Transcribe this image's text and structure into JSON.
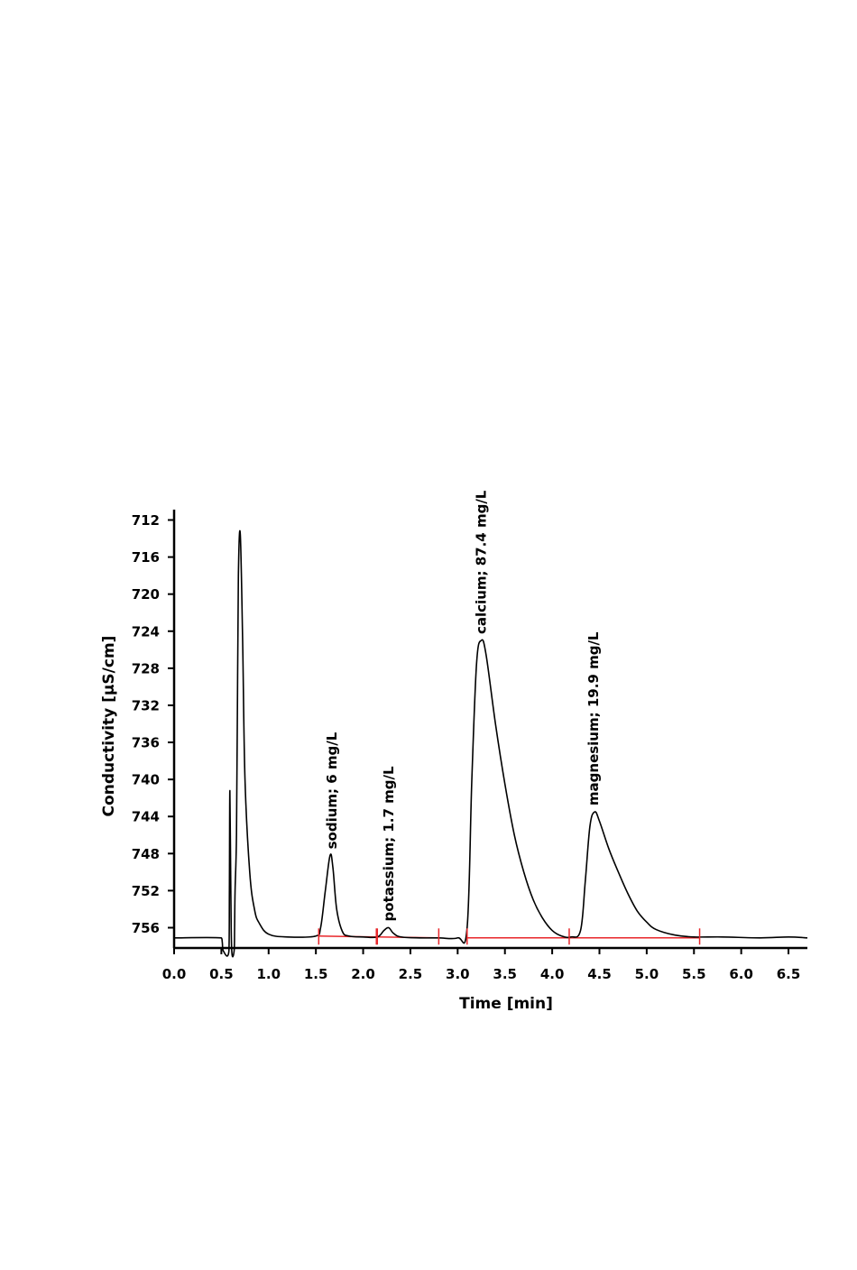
{
  "chart_data": {
    "type": "line",
    "xlabel": "Time [min]",
    "ylabel": "Conductivity [µS/cm]",
    "xlim": [
      0.0,
      6.7
    ],
    "ylim": [
      756.0,
      712.0
    ],
    "y_axis_inverted": true,
    "x_ticks": [
      "0.0",
      "0.5",
      "1.0",
      "1.5",
      "2.0",
      "2.5",
      "3.0",
      "3.5",
      "4.0",
      "4.5",
      "5.0",
      "5.5",
      "6.0",
      "6.5"
    ],
    "y_ticks": [
      "712",
      "716",
      "720",
      "724",
      "728",
      "732",
      "736",
      "740",
      "744",
      "748",
      "752",
      "756"
    ],
    "grid": false,
    "colors": {
      "trace": "#000000",
      "baseline": "#e8262a"
    },
    "series": [
      {
        "x": [
          0.0,
          0.5,
          0.51,
          0.52,
          0.58,
          0.585,
          0.59,
          0.6,
          0.61,
          0.635,
          0.64,
          0.645,
          0.66,
          0.67,
          0.68,
          0.7,
          0.725,
          0.75,
          0.8,
          0.85,
          0.9,
          1.0,
          1.2,
          1.5,
          1.55,
          1.6,
          1.65,
          1.68,
          1.72,
          1.78,
          1.85,
          2.0,
          2.15,
          2.22,
          2.27,
          2.32,
          2.4,
          2.6,
          2.8,
          3.0,
          3.1,
          3.15,
          3.2,
          3.25,
          3.3,
          3.4,
          3.5,
          3.6,
          3.7,
          3.8,
          3.9,
          4.0,
          4.1,
          4.2,
          4.3,
          4.35,
          4.4,
          4.45,
          4.5,
          4.6,
          4.7,
          4.8,
          4.9,
          5.0,
          5.1,
          5.3,
          5.5,
          5.8,
          6.2,
          6.5,
          6.7
        ],
        "y": [
          757.1,
          757.1,
          757.6,
          758.5,
          758.5,
          752.0,
          741.2,
          752.0,
          758.5,
          758.5,
          756.0,
          752.0,
          746.0,
          732.0,
          718.0,
          713.5,
          725.0,
          740.0,
          750.0,
          754.0,
          755.5,
          756.7,
          757.0,
          756.9,
          756.0,
          752.0,
          748.2,
          749.5,
          754.0,
          756.4,
          756.9,
          757.0,
          757.0,
          756.3,
          756.0,
          756.6,
          757.0,
          757.1,
          757.1,
          757.1,
          756.0,
          740.0,
          727.5,
          725.0,
          726.5,
          734.0,
          740.5,
          746.0,
          750.0,
          753.0,
          755.0,
          756.3,
          756.9,
          757.0,
          756.3,
          751.0,
          745.0,
          743.5,
          744.5,
          747.5,
          750.0,
          752.3,
          754.2,
          755.4,
          756.2,
          756.8,
          757.0,
          757.0,
          757.1,
          757.0,
          757.1
        ]
      }
    ],
    "annotations": [
      {
        "text": "sodium; 6 mg/L",
        "x": 1.67,
        "y": 748.2
      },
      {
        "text": "potassium; 1.7 mg/L",
        "x": 2.27,
        "y": 756.0
      },
      {
        "text": "calcium; 87.4 mg/L",
        "x": 3.25,
        "y": 725.0
      },
      {
        "text": "magnesium; 19.9 mg/L",
        "x": 4.44,
        "y": 743.5
      }
    ],
    "integration_markers": [
      1.53,
      2.14,
      2.15,
      2.8,
      3.1,
      4.18,
      5.56
    ],
    "baseline_segments": [
      {
        "x": [
          1.53,
          2.14
        ],
        "y": [
          756.9,
          757.0
        ]
      },
      {
        "x": [
          2.15,
          2.8
        ],
        "y": [
          757.0,
          757.1
        ]
      },
      {
        "x": [
          3.1,
          4.18
        ],
        "y": [
          757.1,
          757.1
        ]
      },
      {
        "x": [
          4.18,
          5.56
        ],
        "y": [
          757.1,
          757.1
        ]
      }
    ]
  }
}
